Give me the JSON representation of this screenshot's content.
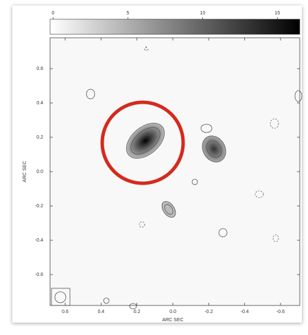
{
  "chart_data": {
    "type": "contour",
    "xlabel": "ARC SEC",
    "ylabel": "ARC SEC",
    "xlim": [
      0.684,
      -0.707
    ],
    "ylim": [
      -0.78,
      0.78
    ],
    "xticks": [
      0.6,
      0.4,
      0.2,
      {
        "value": 0,
        "label": "0.0"
      },
      -0.2,
      -0.4,
      -0.6
    ],
    "yticks": [
      0.6,
      0.4,
      0.2,
      {
        "value": 0,
        "label": "0.0"
      },
      -0.2,
      -0.4,
      -0.6
    ],
    "colorbar": {
      "lim": [
        -0.2,
        16.5
      ],
      "ticks": [
        0,
        5,
        10,
        15
      ]
    },
    "highlight_color": "#d42a1e"
  }
}
